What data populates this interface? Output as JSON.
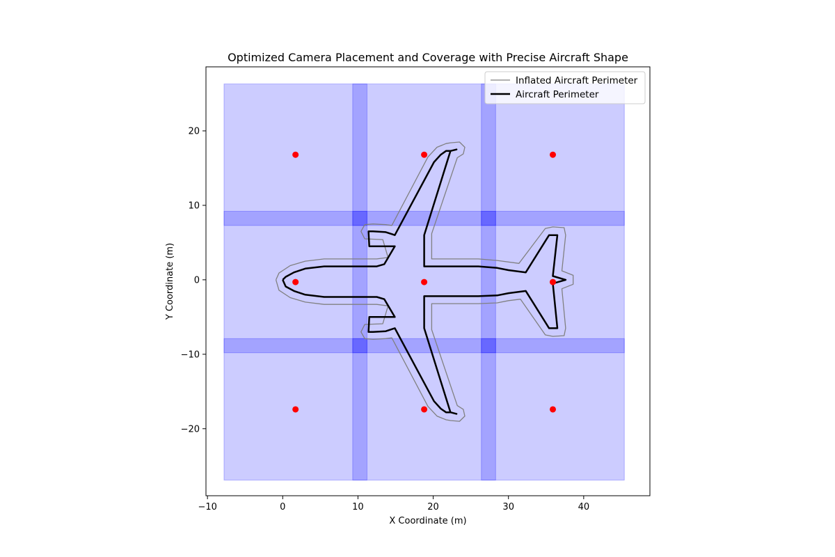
{
  "chart_data": {
    "type": "scatter",
    "title": "Optimized Camera Placement and Coverage with Precise Aircraft Shape",
    "xlabel": "X Coordinate (m)",
    "ylabel": "Y Coordinate (m)",
    "xlim": [
      -10.2,
      48.8
    ],
    "ylim": [
      -29.0,
      28.6
    ],
    "x_ticks": [
      -10,
      0,
      10,
      20,
      30,
      40
    ],
    "x_tick_labels": [
      "−10",
      "0",
      "10",
      "20",
      "30",
      "40"
    ],
    "y_ticks": [
      -20,
      -10,
      0,
      10,
      20
    ],
    "y_tick_labels": [
      "−20",
      "−10",
      "0",
      "10",
      "20"
    ],
    "grid": false,
    "legend_position": "top-right",
    "legend": [
      {
        "label": "Inflated Aircraft Perimeter",
        "color": "#808080",
        "line_width": "thin"
      },
      {
        "label": "Aircraft Perimeter",
        "color": "#000000",
        "line_width": "thick"
      }
    ],
    "colors": {
      "coverage": "#0000ff",
      "camera": "#ff0000",
      "aircraft": "#000000",
      "inflated": "#808080"
    },
    "coverage_alpha": 0.2,
    "camera_positions": [
      {
        "x": 1.7,
        "y": 16.8
      },
      {
        "x": 18.8,
        "y": 16.8
      },
      {
        "x": 35.9,
        "y": 16.8
      },
      {
        "x": 1.7,
        "y": -0.3
      },
      {
        "x": 18.8,
        "y": -0.3
      },
      {
        "x": 35.9,
        "y": -0.3
      },
      {
        "x": 1.7,
        "y": -17.4
      },
      {
        "x": 18.8,
        "y": -17.4
      },
      {
        "x": 35.9,
        "y": -17.4
      }
    ],
    "coverage_areas": [
      {
        "x0": -7.8,
        "x1": 11.2,
        "y0": 7.3,
        "y1": 26.3
      },
      {
        "x0": 9.3,
        "x1": 28.3,
        "y0": 7.3,
        "y1": 26.3
      },
      {
        "x0": 26.4,
        "x1": 45.4,
        "y0": 7.3,
        "y1": 26.3
      },
      {
        "x0": -7.8,
        "x1": 11.2,
        "y0": -9.8,
        "y1": 9.2
      },
      {
        "x0": 9.3,
        "x1": 28.3,
        "y0": -9.8,
        "y1": 9.2
      },
      {
        "x0": 26.4,
        "x1": 45.4,
        "y0": -9.8,
        "y1": 9.2
      },
      {
        "x0": -7.8,
        "x1": 11.2,
        "y0": -26.9,
        "y1": -7.9
      },
      {
        "x0": 9.3,
        "x1": 28.3,
        "y0": -26.9,
        "y1": -7.9
      },
      {
        "x0": 26.4,
        "x1": 45.4,
        "y0": -26.9,
        "y1": -7.9
      }
    ],
    "aircraft_perimeter": [
      [
        0,
        0
      ],
      [
        0.4,
        0.4
      ],
      [
        1.5,
        1.0
      ],
      [
        3.0,
        1.5
      ],
      [
        5.5,
        1.8
      ],
      [
        10,
        1.8
      ],
      [
        12.5,
        1.8
      ],
      [
        13.5,
        2.1
      ],
      [
        14.9,
        4.5
      ],
      [
        11.5,
        4.5
      ],
      [
        11.4,
        6.5
      ],
      [
        12.0,
        6.5
      ],
      [
        13.7,
        6.4
      ],
      [
        14.6,
        6.1
      ],
      [
        14.9,
        6.0
      ],
      [
        20.1,
        15.8
      ],
      [
        21.0,
        16.8
      ],
      [
        21.7,
        17.3
      ],
      [
        22.3,
        17.3
      ],
      [
        23.1,
        17.5
      ],
      [
        22.3,
        17.3
      ],
      [
        18.8,
        6.0
      ],
      [
        18.8,
        1.8
      ],
      [
        24.0,
        1.8
      ],
      [
        26.0,
        1.8
      ],
      [
        28.5,
        1.6
      ],
      [
        30.0,
        1.3
      ],
      [
        32.3,
        1.0
      ],
      [
        35.4,
        6.0
      ],
      [
        36.5,
        6.0
      ],
      [
        35.9,
        0.5
      ],
      [
        37.6,
        0
      ],
      [
        35.9,
        -0.5
      ],
      [
        36.5,
        -6.5
      ],
      [
        35.4,
        -6.5
      ],
      [
        32.3,
        -1.5
      ],
      [
        30.0,
        -1.8
      ],
      [
        28.5,
        -2.1
      ],
      [
        26.0,
        -2.2
      ],
      [
        24.0,
        -2.2
      ],
      [
        18.8,
        -2.2
      ],
      [
        18.8,
        -6.5
      ],
      [
        22.3,
        -17.8
      ],
      [
        23.1,
        -18.0
      ],
      [
        22.3,
        -17.8
      ],
      [
        21.7,
        -17.8
      ],
      [
        21.0,
        -17.3
      ],
      [
        20.1,
        -16.3
      ],
      [
        14.9,
        -6.5
      ],
      [
        14.6,
        -6.6
      ],
      [
        13.7,
        -6.9
      ],
      [
        12.0,
        -7.0
      ],
      [
        11.4,
        -7.0
      ],
      [
        11.5,
        -5.0
      ],
      [
        14.9,
        -5.0
      ],
      [
        13.5,
        -2.6
      ],
      [
        12.5,
        -2.3
      ],
      [
        10,
        -2.3
      ],
      [
        5.5,
        -2.3
      ],
      [
        3.0,
        -2.0
      ],
      [
        1.5,
        -1.5
      ],
      [
        0.4,
        -0.9
      ],
      [
        0,
        0
      ]
    ],
    "inflated_perimeter": [
      [
        -0.9,
        0
      ],
      [
        -0.5,
        0.9
      ],
      [
        1.0,
        1.9
      ],
      [
        3.0,
        2.5
      ],
      [
        5.5,
        2.8
      ],
      [
        10,
        2.8
      ],
      [
        12.5,
        2.8
      ],
      [
        14.0,
        3.0
      ],
      [
        13.3,
        5.4
      ],
      [
        10.9,
        5.5
      ],
      [
        10.4,
        6.5
      ],
      [
        10.9,
        7.4
      ],
      [
        12.0,
        7.5
      ],
      [
        13.7,
        7.4
      ],
      [
        14.5,
        7.3
      ],
      [
        19.3,
        16.5
      ],
      [
        20.5,
        17.8
      ],
      [
        21.7,
        18.3
      ],
      [
        22.3,
        18.4
      ],
      [
        23.5,
        18.5
      ],
      [
        24.2,
        17.8
      ],
      [
        24.0,
        16.9
      ],
      [
        23.2,
        16.4
      ],
      [
        19.8,
        6.2
      ],
      [
        19.8,
        2.8
      ],
      [
        24.0,
        2.8
      ],
      [
        26.0,
        2.8
      ],
      [
        28.5,
        2.6
      ],
      [
        31.4,
        2.2
      ],
      [
        34.9,
        6.9
      ],
      [
        35.9,
        7.1
      ],
      [
        37.4,
        7.0
      ],
      [
        37.6,
        6.0
      ],
      [
        37.1,
        1.2
      ],
      [
        38.6,
        0.6
      ],
      [
        38.6,
        -0.6
      ],
      [
        37.1,
        -1.2
      ],
      [
        37.6,
        -6.5
      ],
      [
        37.4,
        -7.5
      ],
      [
        35.9,
        -7.6
      ],
      [
        34.9,
        -7.4
      ],
      [
        31.6,
        -2.6
      ],
      [
        30.0,
        -2.8
      ],
      [
        28.5,
        -3.1
      ],
      [
        26.0,
        -3.2
      ],
      [
        24.0,
        -3.2
      ],
      [
        19.8,
        -3.2
      ],
      [
        19.8,
        -6.7
      ],
      [
        23.2,
        -16.9
      ],
      [
        24.0,
        -17.4
      ],
      [
        24.2,
        -18.3
      ],
      [
        23.5,
        -19.0
      ],
      [
        22.3,
        -18.9
      ],
      [
        21.7,
        -18.8
      ],
      [
        20.5,
        -18.3
      ],
      [
        19.3,
        -17.0
      ],
      [
        14.5,
        -7.8
      ],
      [
        13.7,
        -7.9
      ],
      [
        12.0,
        -8.0
      ],
      [
        10.9,
        -7.9
      ],
      [
        10.4,
        -7.0
      ],
      [
        10.9,
        -6.0
      ],
      [
        13.3,
        -5.9
      ],
      [
        14.0,
        -3.5
      ],
      [
        12.5,
        -3.3
      ],
      [
        10,
        -3.3
      ],
      [
        5.5,
        -3.3
      ],
      [
        3.0,
        -3.0
      ],
      [
        1.0,
        -2.4
      ],
      [
        -0.5,
        -1.4
      ],
      [
        -0.9,
        0
      ]
    ]
  }
}
